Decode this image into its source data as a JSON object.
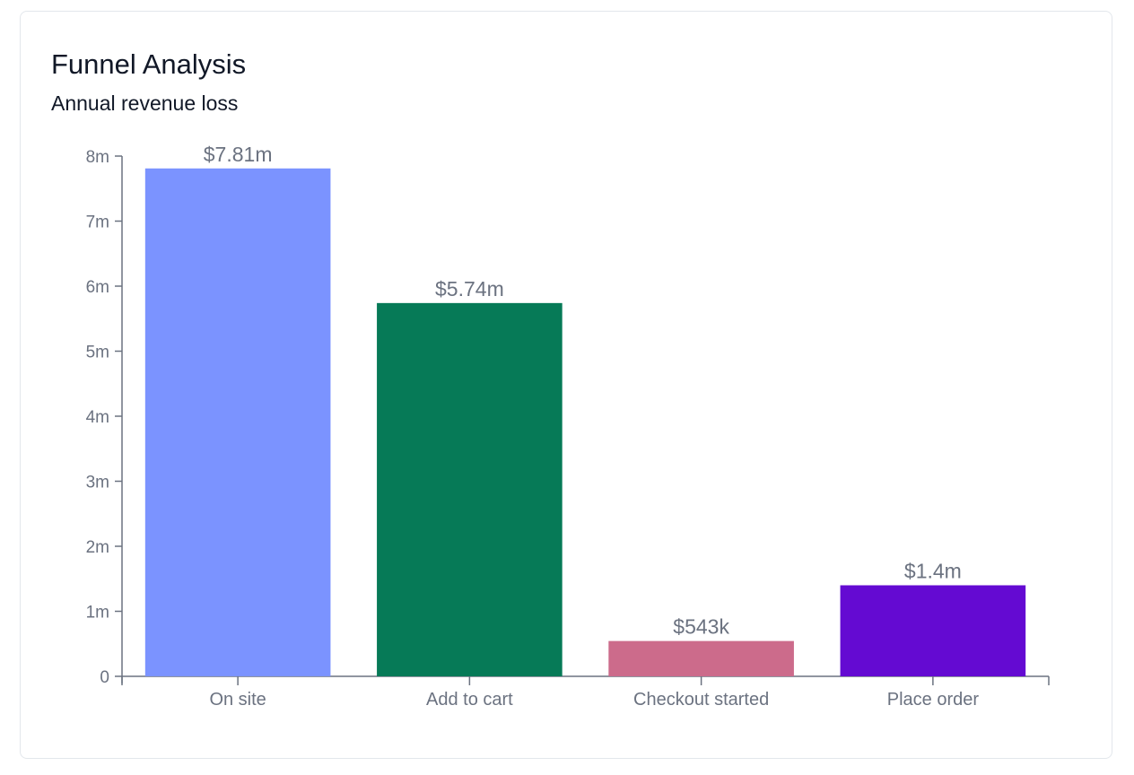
{
  "card": {
    "title": "Funnel Analysis",
    "subtitle": "Annual revenue loss"
  },
  "chart_data": {
    "type": "bar",
    "title": "Funnel Analysis",
    "subtitle": "Annual revenue loss",
    "categories": [
      "On site",
      "Add to cart",
      "Checkout started",
      "Place order"
    ],
    "values": [
      7810000,
      5740000,
      543000,
      1400000
    ],
    "data_labels": [
      "$7.81m",
      "$5.74m",
      "$543k",
      "$1.4m"
    ],
    "colors": [
      "#7b93ff",
      "#067a57",
      "#cc6b8b",
      "#640ad2"
    ],
    "ylim": [
      0,
      8000000
    ],
    "yticks": [
      0,
      1000000,
      2000000,
      3000000,
      4000000,
      5000000,
      6000000,
      7000000,
      8000000
    ],
    "ytick_labels": [
      "0",
      "1m",
      "2m",
      "3m",
      "4m",
      "5m",
      "6m",
      "7m",
      "8m"
    ],
    "xlabel": "",
    "ylabel": "",
    "grid": false,
    "legend": "none"
  }
}
